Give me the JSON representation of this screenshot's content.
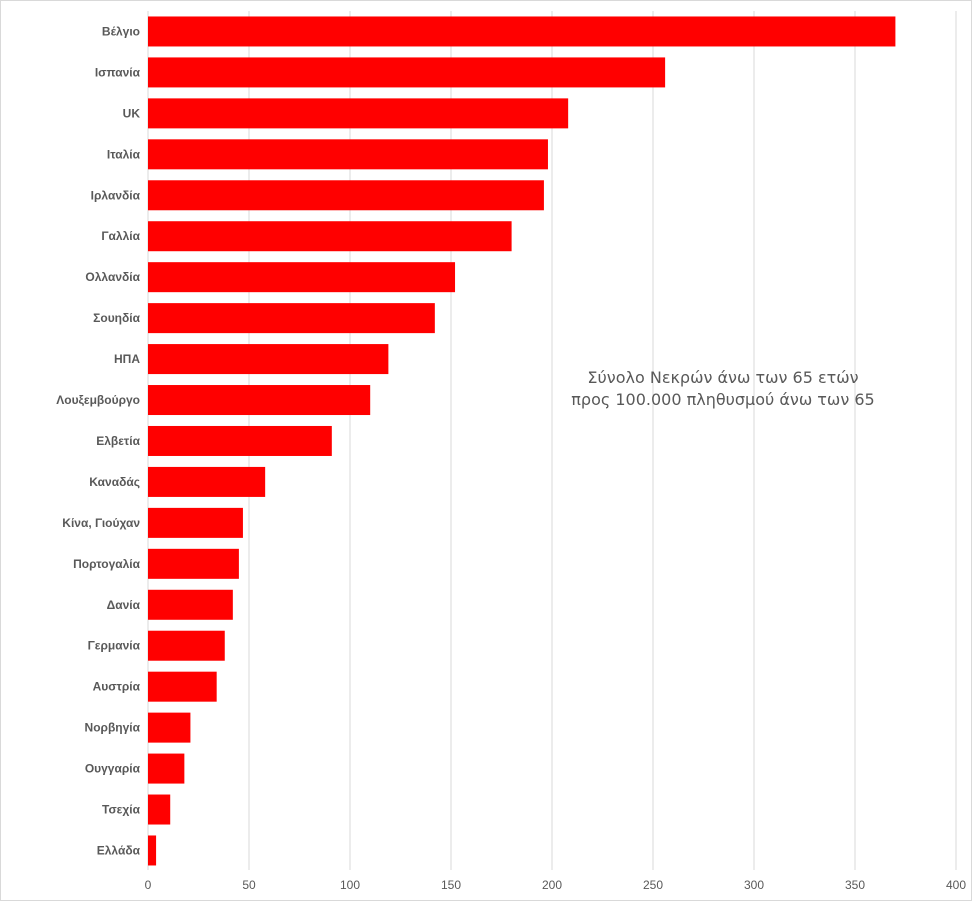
{
  "chart_data": {
    "type": "bar",
    "orientation": "horizontal",
    "categories": [
      "Βέλγιο",
      "Ισπανία",
      "UK",
      "Ιταλία",
      "Ιρλανδία",
      "Γαλλία",
      "Ολλανδία",
      "Σουηδία",
      "ΗΠΑ",
      "Λουξεμβούργο",
      "Ελβετία",
      "Καναδάς",
      "Κίνα, Γιούχαν",
      "Πορτογαλία",
      "Δανία",
      "Γερμανία",
      "Αυστρία",
      "Νορβηγία",
      "Ουγγαρία",
      "Τσεχία",
      "Ελλάδα"
    ],
    "values": [
      370,
      256,
      208,
      198,
      196,
      180,
      152,
      142,
      119,
      110,
      91,
      58,
      47,
      45,
      42,
      38,
      34,
      21,
      18,
      11,
      4
    ],
    "xlim": [
      0,
      400
    ],
    "xticks": [
      0,
      50,
      100,
      150,
      200,
      250,
      300,
      350,
      400
    ],
    "grid": true,
    "bar_color": "#ff0000",
    "annotation": [
      "Σύνολο Νεκρών άνω των 65 ετών",
      "προς 100.000 πληθυσμού άνω των 65"
    ]
  }
}
